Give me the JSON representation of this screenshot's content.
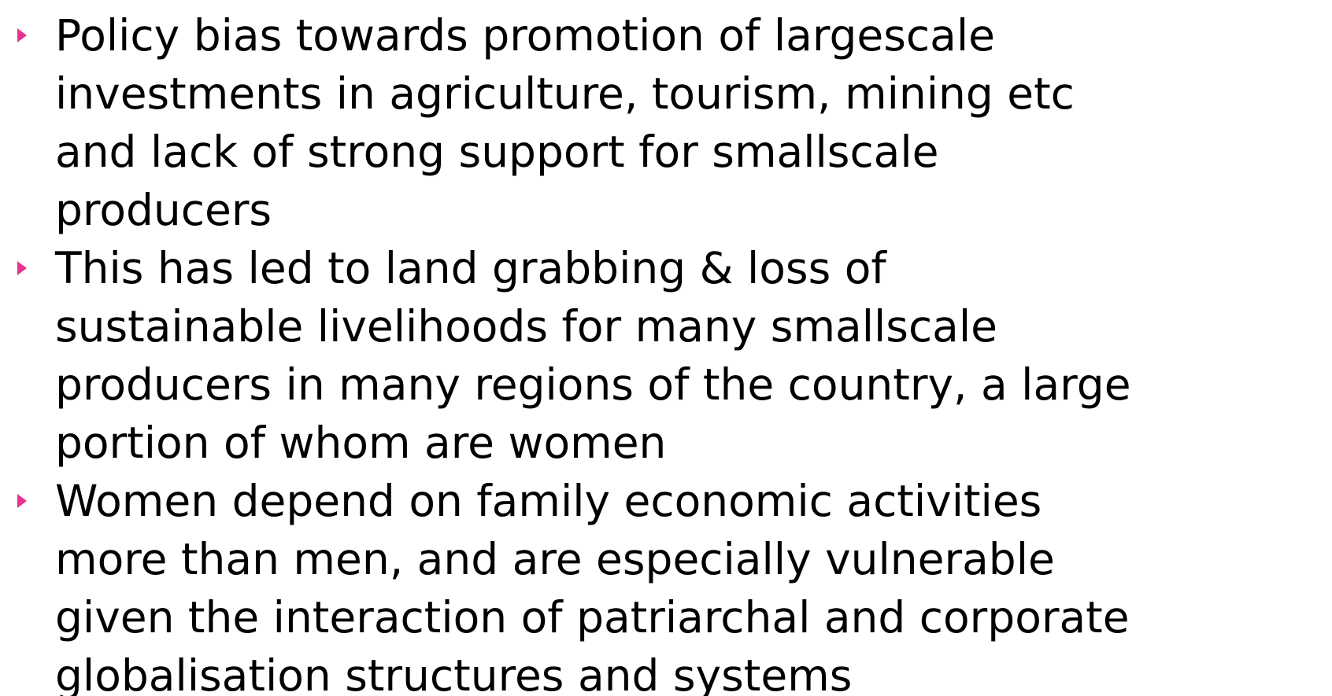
{
  "bullets": [
    {
      "lines": [
        "Policy bias towards promotion of largescale",
        "investments in agriculture, tourism, mining etc",
        "and lack of strong support for smallscale",
        "producers"
      ]
    },
    {
      "lines": [
        "This has led to land grabbing & loss of",
        "sustainable livelihoods for many smallscale",
        "producers in many regions of the country, a large",
        "portion of whom are women"
      ]
    },
    {
      "lines": [
        "Women depend on family economic activities",
        "more than men, and are especially vulnerable",
        "given the interaction of patriarchal and corporate",
        "globalisation structures and systems"
      ]
    }
  ]
}
